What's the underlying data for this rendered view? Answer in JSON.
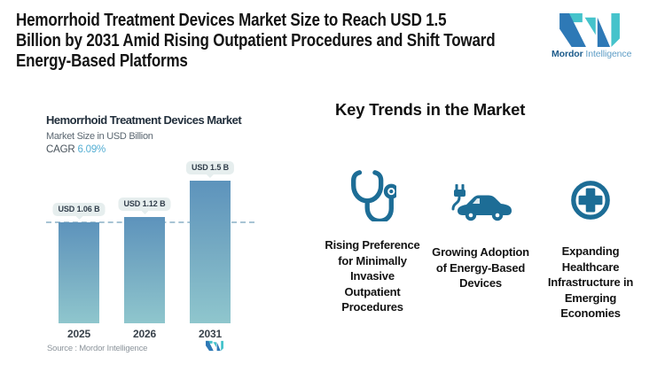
{
  "header": {
    "title": "Hemorrhoid Treatment Devices Market Size to Reach USD 1.5 Billion by 2031 Amid Rising Outpatient Procedures and Shift Toward Energy-Based Platforms",
    "title_lines": [
      "Hemorrhoid Treatment Devices Market Size to Reach USD 1.5",
      "Billion by 2031 Amid Rising Outpatient Procedures and Shift Toward",
      "Energy-Based Platforms"
    ]
  },
  "brand": {
    "name_primary": "Mordor",
    "name_secondary": "Intelligence",
    "colors": {
      "logo_blue": "#2e79b6",
      "logo_teal": "#45c3cb",
      "text_primary": "#1a5a8a",
      "text_secondary": "#5e9dc6"
    }
  },
  "chart": {
    "title": "Hemorrhoid Treatment Devices Market",
    "subtitle": "Market Size in USD Billion",
    "cagr_label": "CAGR",
    "cagr_value": "6.09%",
    "source": "Source : Mordor Intelligence"
  },
  "chart_data": {
    "type": "bar",
    "title": "Hemorrhoid Treatment Devices Market",
    "ylabel": "Market Size in USD Billion",
    "categories": [
      "2025",
      "2026",
      "2031"
    ],
    "values": [
      1.06,
      1.12,
      1.5
    ],
    "value_labels": [
      "USD 1.06 B",
      "USD 1.12 B",
      "USD 1.5 B"
    ],
    "unit": "USD Billion",
    "cagr_percent": 6.09,
    "reference_line_value": 1.06,
    "ylim": [
      0,
      1.6
    ],
    "grid": false,
    "legend": "none",
    "bar_color_top": "#5d93bc",
    "bar_color_bottom": "#8fc6cd",
    "label_pill_bg": "#e6eeee",
    "reference_line_color": "#a8c4d4"
  },
  "trends": {
    "heading": "Key Trends in the Market",
    "accent_color": "#1d6d96",
    "items": [
      {
        "icon": "stethoscope-icon",
        "label": "Rising Preference for Minimally Invasive Outpatient Procedures"
      },
      {
        "icon": "electric-car-icon",
        "label": "Growing Adoption of Energy-Based Devices"
      },
      {
        "icon": "medical-cross-icon",
        "label": "Expanding Healthcare Infrastructure in Emerging Economies"
      }
    ]
  }
}
